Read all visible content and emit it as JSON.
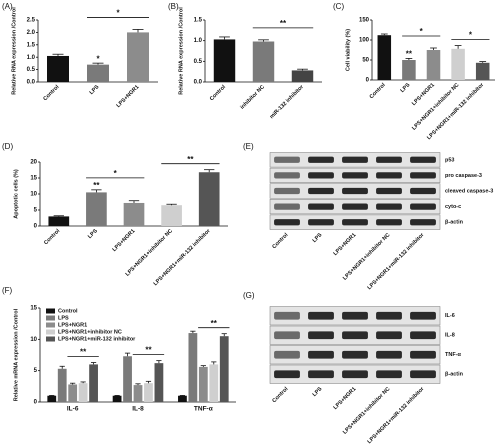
{
  "chart_data": [
    {
      "type": "bar",
      "panel_label": "(A)",
      "y_label": "Relative RNA expression /Control",
      "categories": [
        "Control",
        "LPS",
        "LPS+NGR1"
      ],
      "values": [
        1.05,
        0.7,
        2.0
      ],
      "errors": [
        0.07,
        0.06,
        0.12
      ],
      "colors": [
        "#111111",
        "#7a7a7a",
        "#8c8c8c"
      ],
      "ylim": [
        0,
        2.5
      ],
      "yticks": [
        {
          "value": 0,
          "label": "0.0"
        },
        0.5,
        {
          "value": 1,
          "label": "1.0"
        },
        1.5,
        {
          "value": 2,
          "label": "2.0"
        },
        2.5
      ],
      "annotations": [
        {
          "text": "*",
          "categories": [
            "LPS"
          ]
        },
        {
          "text": "*",
          "categories": [
            "LPS",
            "LPS+NGR1"
          ]
        }
      ]
    },
    {
      "type": "bar",
      "panel_label": "(B)",
      "y_label": "Relative RNA expression /Control",
      "categories": [
        "Control",
        "inhibitor NC",
        "miR-132 inhibitor"
      ],
      "values": [
        1.03,
        0.98,
        0.28
      ],
      "errors": [
        0.06,
        0.04,
        0.03
      ],
      "colors": [
        "#111111",
        "#7a7a7a",
        "#444444"
      ],
      "ylim": [
        0,
        1.5
      ],
      "yticks": [
        {
          "value": 0,
          "label": "0.0"
        },
        0.5,
        {
          "value": 1,
          "label": "1.0"
        },
        1.5
      ],
      "annotations": [
        {
          "text": "**",
          "categories": [
            "inhibitor NC",
            "miR-132 inhibitor"
          ]
        }
      ]
    },
    {
      "type": "bar",
      "panel_label": "(C)",
      "y_label": "Cell viability (%)",
      "categories": [
        "Control",
        "LPS",
        "LPS+NGR1",
        "LPS+NGR1+inhibitor NC",
        "LPS+NGR1+miR-132 inhibitor"
      ],
      "values": [
        112,
        50,
        75,
        78,
        43
      ],
      "errors": [
        3,
        4,
        5,
        8,
        3
      ],
      "colors": [
        "#111111",
        "#7a7a7a",
        "#8c8c8c",
        "#cfcfcf",
        "#555555"
      ],
      "ylim": [
        0,
        150
      ],
      "yticks": [
        0,
        50,
        100,
        150
      ],
      "annotations": [
        {
          "text": "**",
          "categories": [
            "LPS"
          ]
        },
        {
          "text": "*",
          "categories": [
            "LPS",
            "LPS+NGR1"
          ]
        },
        {
          "text": "*",
          "categories": [
            "LPS+NGR1+inhibitor NC",
            "LPS+NGR1+miR-132 inhibitor"
          ]
        }
      ]
    },
    {
      "type": "bar",
      "panel_label": "(D)",
      "y_label": "Apoptotic cells (%)",
      "categories": [
        "Control",
        "LPS",
        "LPS+NGR1",
        "LPS+NGR1+inhibitor NC",
        "LPS+NGR1+miR-132 inhibitor"
      ],
      "values": [
        3,
        10.5,
        7.2,
        6.5,
        16.8
      ],
      "errors": [
        0.2,
        0.8,
        0.7,
        0.3,
        0.8
      ],
      "colors": [
        "#111111",
        "#7a7a7a",
        "#8c8c8c",
        "#cfcfcf",
        "#555555"
      ],
      "ylim": [
        0,
        20
      ],
      "yticks": [
        0,
        5,
        10,
        15,
        20
      ],
      "annotations": [
        {
          "text": "**",
          "categories": [
            "LPS"
          ]
        },
        {
          "text": "*",
          "categories": [
            "LPS",
            "LPS+NGR1"
          ]
        },
        {
          "text": "**",
          "categories": [
            "LPS+NGR1+inhibitor NC",
            "LPS+NGR1+miR-132 inhibitor"
          ]
        }
      ]
    },
    {
      "type": "grouped_bar",
      "panel_label": "(F)",
      "y_label": "Relative mRNA expression /Control",
      "categories": [
        "IL-6",
        "IL-8",
        "TNF-α"
      ],
      "ylim": [
        0,
        15
      ],
      "yticks": [
        0,
        5,
        10,
        15
      ],
      "series": [
        {
          "name": "Control",
          "color": "#111111",
          "values": [
            1,
            1,
            1
          ],
          "errors": [
            0.05,
            0.05,
            0.05
          ]
        },
        {
          "name": "LPS",
          "color": "#7a7a7a",
          "values": [
            5.3,
            7.3,
            11.0
          ],
          "errors": [
            0.4,
            0.5,
            0.3
          ]
        },
        {
          "name": "LPS+NGR1",
          "color": "#8c8c8c",
          "values": [
            2.8,
            2.7,
            5.6
          ],
          "errors": [
            0.2,
            0.2,
            0.2
          ]
        },
        {
          "name": "LPS+NGR1+inhibitor NC",
          "color": "#cfcfcf",
          "values": [
            3.0,
            3.0,
            6.0
          ],
          "errors": [
            0.2,
            0.3,
            0.4
          ]
        },
        {
          "name": "LPS+NGR1+miR-132 inhibitor",
          "color": "#555555",
          "values": [
            6.0,
            6.2,
            10.5
          ],
          "errors": [
            0.3,
            0.4,
            0.4
          ]
        }
      ],
      "annotations": [
        {
          "text": "**",
          "category": "IL-6",
          "series": [
            "LPS+NGR1",
            "LPS+NGR1+miR-132 inhibitor"
          ]
        },
        {
          "text": "**",
          "category": "IL-8",
          "series": [
            "LPS+NGR1",
            "LPS+NGR1+miR-132 inhibitor"
          ]
        },
        {
          "text": "**",
          "category": "TNF-α",
          "series": [
            "LPS+NGR1",
            "LPS+NGR1+miR-132 inhibitor"
          ]
        }
      ]
    }
  ],
  "blots": [
    {
      "panel_label": "(E)",
      "rows": [
        "p53",
        "pro caspase-3",
        "cleaved caspase-3",
        "cyto-c",
        "β-actin"
      ],
      "lanes": [
        "Control",
        "LPS",
        "LPS+NGR1",
        "LPS+NGR1+inhibitor NC",
        "LPS+NGR1+miR-132 inhibitor"
      ]
    },
    {
      "panel_label": "(G)",
      "rows": [
        "IL-6",
        "IL-8",
        "TNF-α",
        "β-actin"
      ],
      "lanes": [
        "Control",
        "LPS",
        "LPS+NGR1",
        "LPS+NGR1+inhibitor NC",
        "LPS+NGR1+miR-132 inhibitor"
      ]
    }
  ]
}
